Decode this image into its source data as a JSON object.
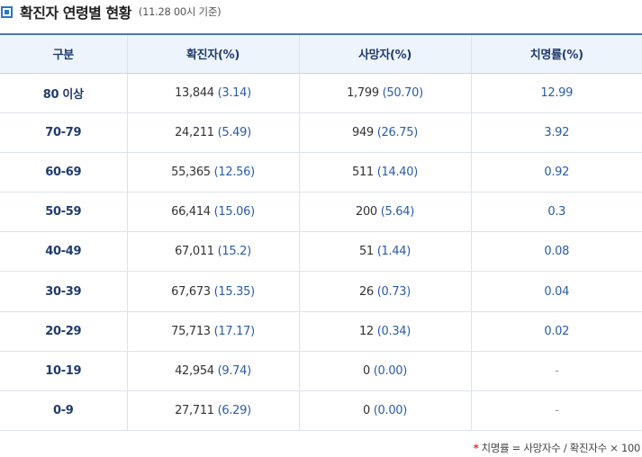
{
  "header": {
    "title": "확진자 연령별 현황",
    "subtitle": "(11.28 00시 기준)"
  },
  "table": {
    "columns": [
      "구분",
      "확진자(%)",
      "사망자(%)",
      "치명률(%)"
    ],
    "rows": [
      {
        "age": "80 이상",
        "cases": "13,844",
        "cases_pct": "(3.14)",
        "deaths": "1,799",
        "deaths_pct": "(50.70)",
        "rate": "12.99"
      },
      {
        "age": "70-79",
        "cases": "24,211",
        "cases_pct": "(5.49)",
        "deaths": "949",
        "deaths_pct": "(26.75)",
        "rate": "3.92"
      },
      {
        "age": "60-69",
        "cases": "55,365",
        "cases_pct": "(12.56)",
        "deaths": "511",
        "deaths_pct": "(14.40)",
        "rate": "0.92"
      },
      {
        "age": "50-59",
        "cases": "66,414",
        "cases_pct": "(15.06)",
        "deaths": "200",
        "deaths_pct": "(5.64)",
        "rate": "0.3"
      },
      {
        "age": "40-49",
        "cases": "67,011",
        "cases_pct": "(15.2)",
        "deaths": "51",
        "deaths_pct": "(1.44)",
        "rate": "0.08"
      },
      {
        "age": "30-39",
        "cases": "67,673",
        "cases_pct": "(15.35)",
        "deaths": "26",
        "deaths_pct": "(0.73)",
        "rate": "0.04"
      },
      {
        "age": "20-29",
        "cases": "75,713",
        "cases_pct": "(17.17)",
        "deaths": "12",
        "deaths_pct": "(0.34)",
        "rate": "0.02"
      },
      {
        "age": "10-19",
        "cases": "42,954",
        "cases_pct": "(9.74)",
        "deaths": "0",
        "deaths_pct": "(0.00)",
        "rate": "-"
      },
      {
        "age": "0-9",
        "cases": "27,711",
        "cases_pct": "(6.29)",
        "deaths": "0",
        "deaths_pct": "(0.00)",
        "rate": "-"
      }
    ]
  },
  "footnote": {
    "star": "*",
    "text": "치명률 = 사망자수 / 확진자수 × 100"
  },
  "colors": {
    "accent": "#2a73c7",
    "header_bg": "#eef4fb",
    "value_blue": "#2a5ca8"
  }
}
